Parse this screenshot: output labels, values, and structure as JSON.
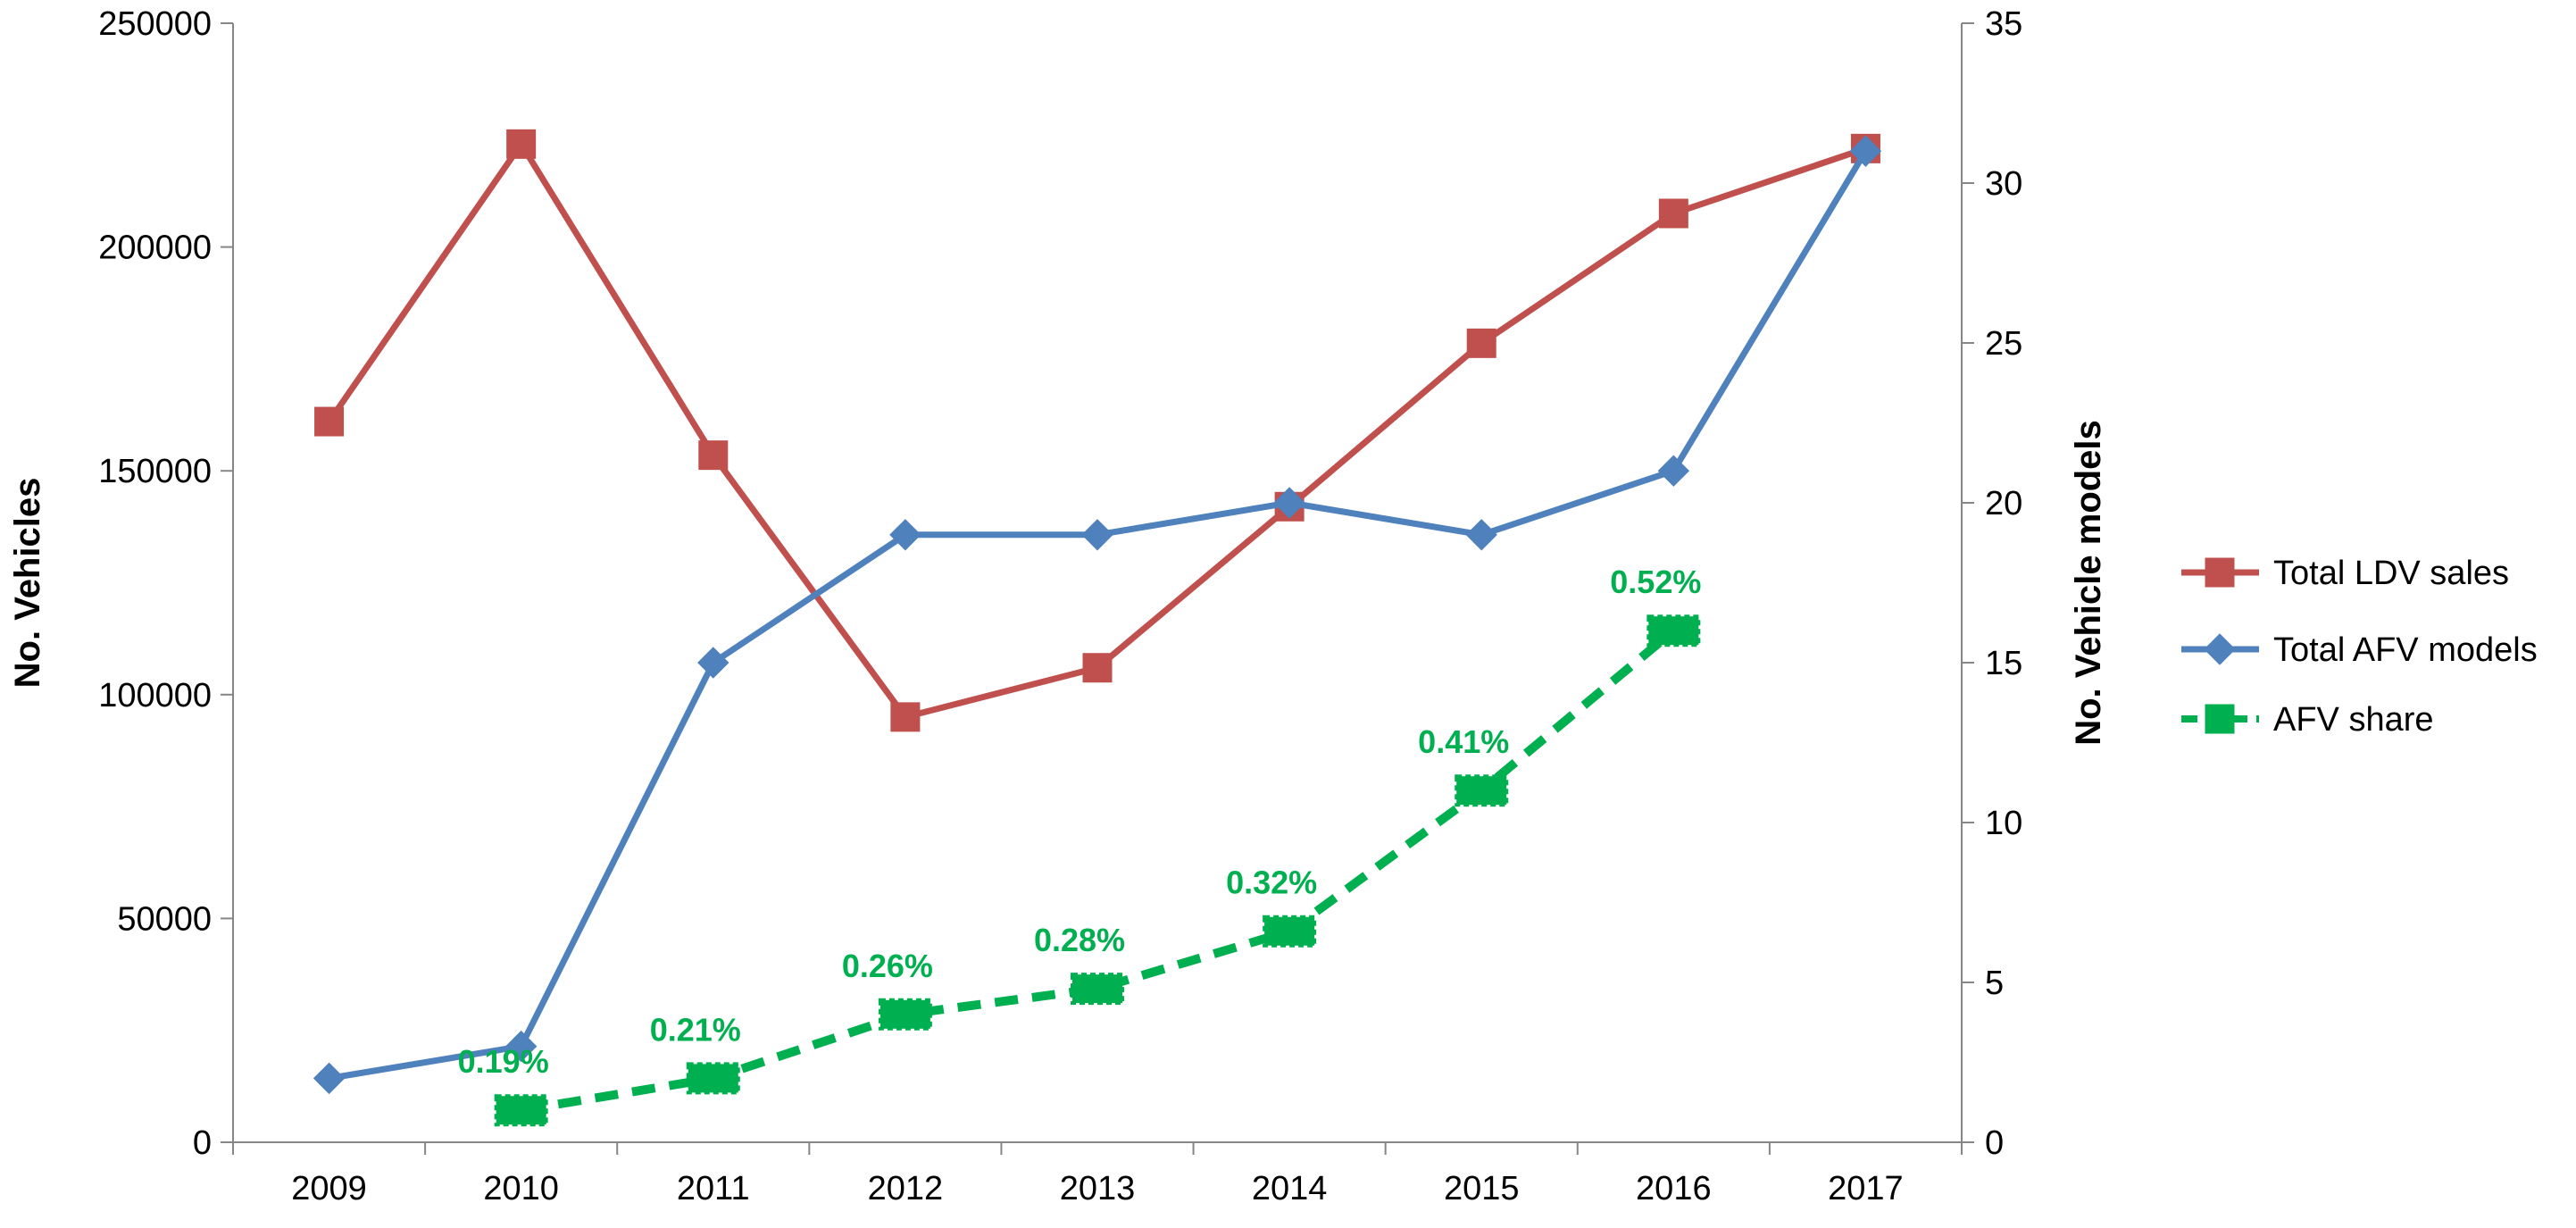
{
  "chart_data": {
    "type": "line",
    "categories": [
      "2009",
      "2010",
      "2011",
      "2012",
      "2013",
      "2014",
      "2015",
      "2016",
      "2017"
    ],
    "y_left": {
      "label": "No. Vehicles",
      "ylim": [
        0,
        250000
      ],
      "ticks": [
        "0",
        "50000",
        "100000",
        "150000",
        "200000",
        "250000"
      ]
    },
    "y_right": {
      "label": "No. Vehicle models",
      "ylim": [
        0,
        35
      ],
      "ticks": [
        "0",
        "5",
        "10",
        "15",
        "20",
        "25",
        "30",
        "35"
      ]
    },
    "grid": false,
    "legend_position": "right",
    "series": [
      {
        "name": "Total LDV sales",
        "axis": "left",
        "color": "#C0504D",
        "marker": "square",
        "line_style": "solid",
        "values": [
          161000,
          223000,
          153500,
          95000,
          106000,
          142000,
          178500,
          207500,
          222000
        ]
      },
      {
        "name": "Total AFV models",
        "axis": "right",
        "color": "#4F81BD",
        "marker": "diamond",
        "line_style": "solid",
        "values": [
          2,
          3,
          15,
          19,
          19,
          20,
          19,
          21,
          31
        ]
      },
      {
        "name": "AFV share",
        "axis": "right",
        "color": "#00B050",
        "marker": "square",
        "line_style": "dashed",
        "values": [
          null,
          1,
          2,
          4,
          4.8,
          6.6,
          11,
          16,
          null
        ],
        "labels": [
          null,
          "0.19%",
          "0.21%",
          "0.26%",
          "0.28%",
          "0.32%",
          "0.41%",
          "0.52%",
          null
        ]
      }
    ]
  }
}
